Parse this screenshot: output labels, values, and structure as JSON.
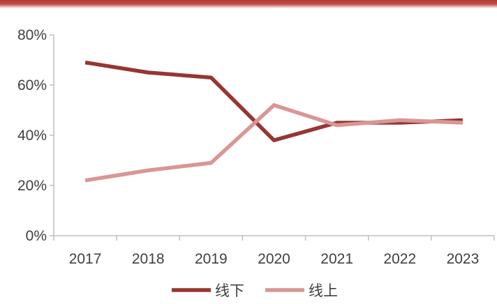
{
  "chart_data": {
    "type": "line",
    "categories": [
      "2017",
      "2018",
      "2019",
      "2020",
      "2021",
      "2022",
      "2023"
    ],
    "series": [
      {
        "name": "线下",
        "values": [
          69,
          65,
          63,
          38,
          45,
          45,
          46
        ],
        "color": "#963634"
      },
      {
        "name": "线上",
        "values": [
          22,
          26,
          29,
          52,
          44,
          46,
          45
        ],
        "color": "#d99694"
      }
    ],
    "y_ticks": [
      "0%",
      "20%",
      "40%",
      "60%",
      "80%"
    ],
    "ylim": [
      0,
      80
    ],
    "grid": false,
    "legend_position": "bottom"
  },
  "colors": {
    "banner": "#b03a2e",
    "axis": "#bfbfbf"
  }
}
